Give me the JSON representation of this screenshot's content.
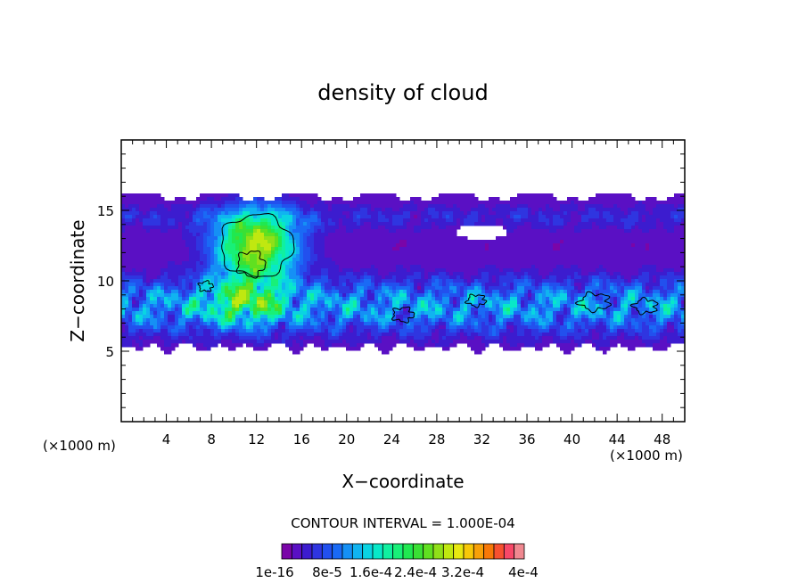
{
  "chart_data": {
    "type": "heatmap",
    "title": "density of cloud",
    "xlabel": "X−coordinate",
    "ylabel": "Z−coordinate",
    "x_unit_left": "(×1000 m)",
    "x_unit_right": "(×1000 m)",
    "xlim": [
      0,
      50
    ],
    "ylim": [
      0,
      20
    ],
    "x_ticks": [
      4,
      8,
      12,
      16,
      20,
      24,
      28,
      32,
      36,
      40,
      44,
      48
    ],
    "y_ticks": [
      5,
      10,
      15
    ],
    "contour_interval_text": "CONTOUR INTERVAL =  1.000E-04",
    "colorbar": {
      "levels": 24,
      "labels": [
        "1e-16",
        "8e-5",
        "1.6e-4",
        "2.4e-4",
        "3.2e-4",
        "4e-4"
      ],
      "colors": [
        "#7a05a8",
        "#5a10c4",
        "#3c1ccf",
        "#2f35e0",
        "#2250ee",
        "#1a6af5",
        "#1590f5",
        "#10b4f0",
        "#0ad4e2",
        "#08e8c8",
        "#10f0a0",
        "#18f078",
        "#20e850",
        "#3ae034",
        "#60e020",
        "#90e018",
        "#c0e810",
        "#e8e810",
        "#f8c808",
        "#f8a008",
        "#f87808",
        "#f85030",
        "#f84868",
        "#f08890"
      ]
    },
    "field_description_values": {
      "cloud_base_z": 5,
      "cloud_top_z": 16,
      "core_center": [
        12,
        12.5
      ],
      "core_peak_value": 0.00024
    }
  }
}
